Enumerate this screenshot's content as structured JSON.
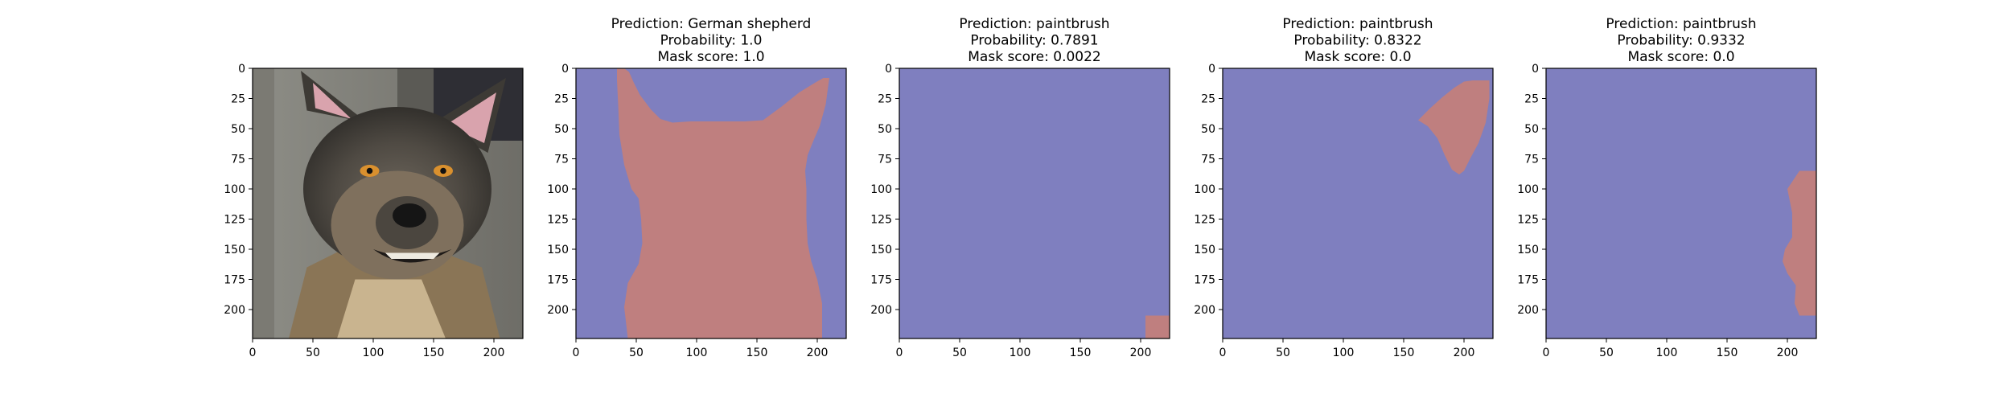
{
  "chart_data": [
    {
      "type": "image",
      "title_lines": [],
      "image": "photo of a dog (German shepherd) with ears up",
      "xticks": [
        0,
        50,
        100,
        150,
        200
      ],
      "yticks": [
        0,
        25,
        50,
        75,
        100,
        125,
        150,
        175,
        200
      ],
      "xlim": [
        0,
        224
      ],
      "ylim": [
        224,
        0
      ]
    },
    {
      "type": "heatmap",
      "title_lines": [
        "Prediction: German shepherd",
        "Probability: 1.0",
        "Mask score: 1.0"
      ],
      "prediction": "German shepherd",
      "probability": 1.0,
      "mask_score": 1.0,
      "xticks": [
        0,
        50,
        100,
        150,
        200
      ],
      "yticks": [
        0,
        25,
        50,
        75,
        100,
        125,
        150,
        175,
        200
      ],
      "xlim": [
        0,
        224
      ],
      "ylim": [
        224,
        0
      ],
      "background_color": "#7f7fbf",
      "mask_color": "#bf7f7f",
      "mask_polygon": [
        [
          34,
          0
        ],
        [
          40,
          0
        ],
        [
          44,
          3
        ],
        [
          48,
          12
        ],
        [
          53,
          22
        ],
        [
          62,
          34
        ],
        [
          70,
          42
        ],
        [
          80,
          45
        ],
        [
          95,
          44
        ],
        [
          110,
          44
        ],
        [
          125,
          44
        ],
        [
          140,
          44
        ],
        [
          155,
          43
        ],
        [
          170,
          32
        ],
        [
          185,
          20
        ],
        [
          198,
          12
        ],
        [
          205,
          8
        ],
        [
          210,
          8
        ],
        [
          209,
          15
        ],
        [
          207,
          30
        ],
        [
          202,
          48
        ],
        [
          196,
          62
        ],
        [
          192,
          72
        ],
        [
          190,
          85
        ],
        [
          191,
          100
        ],
        [
          191,
          125
        ],
        [
          192,
          145
        ],
        [
          195,
          160
        ],
        [
          200,
          175
        ],
        [
          204,
          195
        ],
        [
          204,
          224
        ],
        [
          43,
          224
        ],
        [
          40,
          198
        ],
        [
          43,
          178
        ],
        [
          52,
          162
        ],
        [
          55,
          145
        ],
        [
          54,
          125
        ],
        [
          52,
          108
        ],
        [
          46,
          100
        ],
        [
          40,
          80
        ],
        [
          36,
          55
        ],
        [
          35,
          30
        ],
        [
          34,
          10
        ]
      ]
    },
    {
      "type": "heatmap",
      "title_lines": [
        "Prediction: paintbrush",
        "Probability: 0.7891",
        "Mask score: 0.0022"
      ],
      "prediction": "paintbrush",
      "probability": 0.7891,
      "mask_score": 0.0022,
      "xticks": [
        0,
        50,
        100,
        150,
        200
      ],
      "yticks": [
        0,
        25,
        50,
        75,
        100,
        125,
        150,
        175,
        200
      ],
      "xlim": [
        0,
        224
      ],
      "ylim": [
        224,
        0
      ],
      "background_color": "#7f7fbf",
      "mask_color": "#bf7f7f",
      "mask_polygon": [
        [
          204,
          205
        ],
        [
          224,
          205
        ],
        [
          224,
          224
        ],
        [
          204,
          224
        ]
      ]
    },
    {
      "type": "heatmap",
      "title_lines": [
        "Prediction: paintbrush",
        "Probability: 0.8322",
        "Mask score: 0.0"
      ],
      "prediction": "paintbrush",
      "probability": 0.8322,
      "mask_score": 0.0,
      "xticks": [
        0,
        50,
        100,
        150,
        200
      ],
      "yticks": [
        0,
        25,
        50,
        75,
        100,
        125,
        150,
        175,
        200
      ],
      "xlim": [
        0,
        224
      ],
      "ylim": [
        224,
        0
      ],
      "background_color": "#7f7fbf",
      "mask_color": "#bf7f7f",
      "mask_polygon": [
        [
          165,
          40
        ],
        [
          172,
          33
        ],
        [
          182,
          24
        ],
        [
          192,
          16
        ],
        [
          200,
          11
        ],
        [
          207,
          10
        ],
        [
          221,
          10
        ],
        [
          221,
          25
        ],
        [
          218,
          45
        ],
        [
          212,
          62
        ],
        [
          205,
          75
        ],
        [
          200,
          85
        ],
        [
          196,
          88
        ],
        [
          190,
          84
        ],
        [
          184,
          72
        ],
        [
          178,
          58
        ],
        [
          170,
          48
        ],
        [
          162,
          43
        ]
      ]
    },
    {
      "type": "heatmap",
      "title_lines": [
        "Prediction: paintbrush",
        "Probability: 0.9332",
        "Mask score: 0.0"
      ],
      "prediction": "paintbrush",
      "probability": 0.9332,
      "mask_score": 0.0,
      "xticks": [
        0,
        50,
        100,
        150,
        200
      ],
      "yticks": [
        0,
        25,
        50,
        75,
        100,
        125,
        150,
        175,
        200
      ],
      "xlim": [
        0,
        224
      ],
      "ylim": [
        224,
        0
      ],
      "background_color": "#7f7fbf",
      "mask_color": "#bf7f7f",
      "mask_polygon": [
        [
          210,
          85
        ],
        [
          224,
          85
        ],
        [
          224,
          205
        ],
        [
          210,
          205
        ],
        [
          206,
          195
        ],
        [
          207,
          180
        ],
        [
          200,
          170
        ],
        [
          196,
          160
        ],
        [
          198,
          150
        ],
        [
          204,
          140
        ],
        [
          204,
          120
        ],
        [
          200,
          100
        ]
      ]
    }
  ]
}
